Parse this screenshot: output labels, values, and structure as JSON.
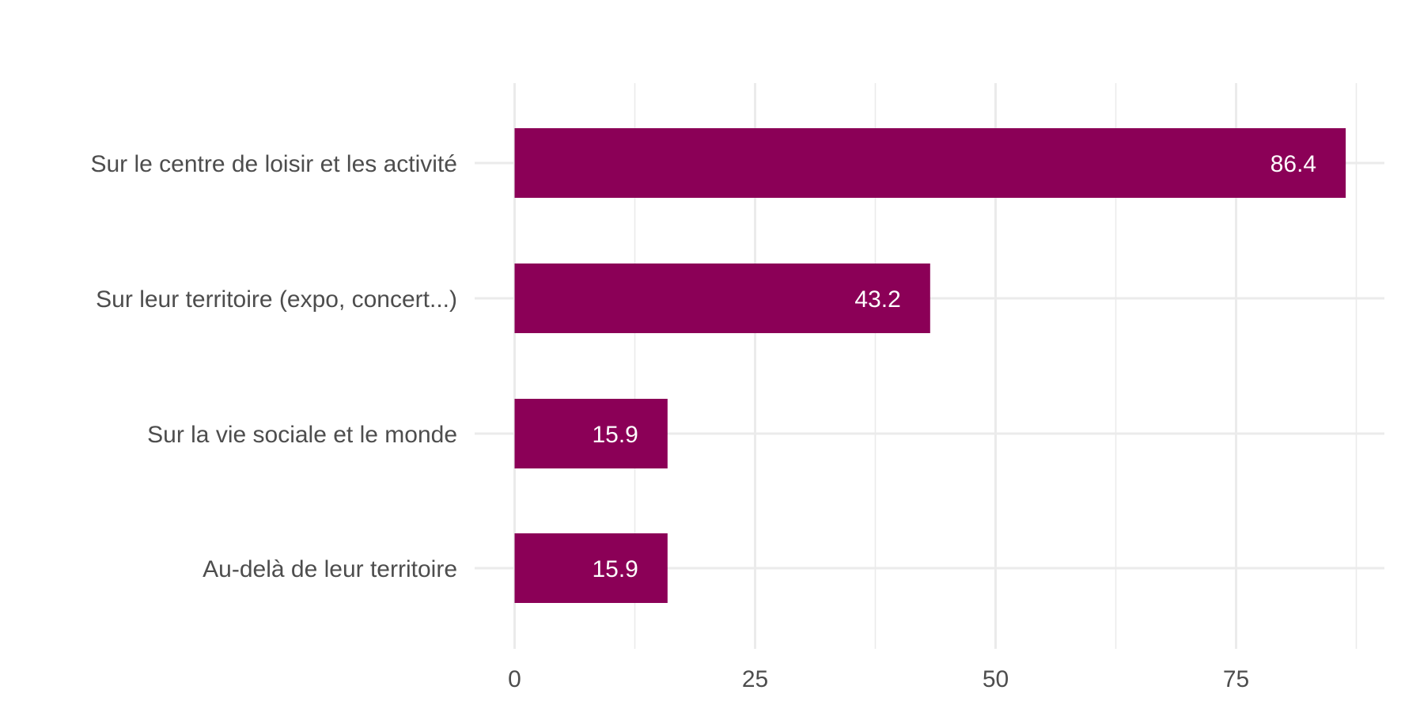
{
  "chart_data": {
    "type": "bar",
    "orientation": "horizontal",
    "title": "",
    "xlabel": "",
    "ylabel": "",
    "categories": [
      "Sur le centre de loisir et les activité",
      "Sur leur territoire (expo, concert...)",
      "Sur la vie sociale et le monde",
      "Au-delà de leur territoire"
    ],
    "values": [
      86.4,
      43.2,
      15.9,
      15.9
    ],
    "value_labels": [
      "86.4",
      "43.2",
      "15.9",
      "15.9"
    ],
    "xlim": [
      0,
      90
    ],
    "xticks": [
      0,
      25,
      50,
      75
    ],
    "xtick_labels": [
      "0",
      "25",
      "50",
      "75"
    ],
    "minor_xticks": [
      12.5,
      37.5,
      62.5,
      87.5
    ],
    "grid": true,
    "legend": "none",
    "bar_color": "#8b0057"
  }
}
